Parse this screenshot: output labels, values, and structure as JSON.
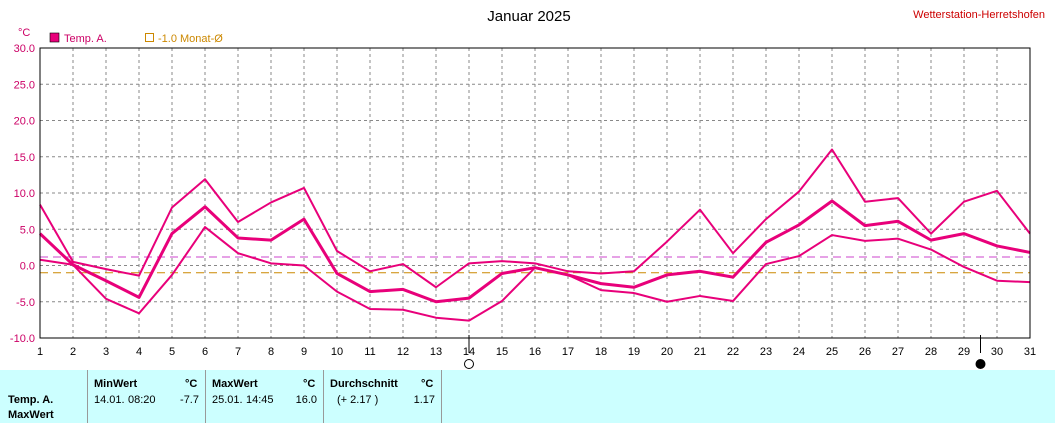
{
  "station": "Wetterstation-Herretshofen",
  "chart_data": {
    "type": "line",
    "title": "Januar 2025",
    "ylabel": "°C",
    "ylim": [
      -10,
      30
    ],
    "yticks": [
      "30.0",
      "25.0",
      "20.0",
      "15.0",
      "10.0",
      "5.0",
      "0.0",
      "-5.0",
      "-10.0"
    ],
    "x": [
      1,
      2,
      3,
      4,
      5,
      6,
      7,
      8,
      9,
      10,
      11,
      12,
      13,
      14,
      15,
      16,
      17,
      18,
      19,
      20,
      21,
      22,
      23,
      24,
      25,
      26,
      27,
      28,
      29,
      30,
      31
    ],
    "xlim": [
      1,
      31
    ],
    "grid": true,
    "legend": [
      {
        "label": "Temp. A.",
        "color": "#e8007a",
        "style": "filled-square"
      },
      {
        "label": "-1.0 Monat-Ø",
        "color": "#cc8800",
        "style": "hollow-square"
      }
    ],
    "series": [
      {
        "role": "max",
        "color": "#e8007a",
        "values": [
          8.4,
          0.5,
          -0.5,
          -1.4,
          8.0,
          11.9,
          6.0,
          8.7,
          10.7,
          2.0,
          -0.8,
          0.2,
          -3.0,
          0.3,
          0.6,
          0.3,
          -0.8,
          -1.1,
          -0.8,
          3.3,
          7.7,
          1.7,
          6.4,
          10.2,
          16.0,
          8.8,
          9.3,
          4.4,
          8.8,
          10.3,
          4.4
        ]
      },
      {
        "role": "avg",
        "color": "#e8007a",
        "values": [
          4.4,
          0.1,
          -2.1,
          -4.4,
          4.4,
          8.1,
          3.8,
          3.5,
          6.4,
          -1.1,
          -3.6,
          -3.3,
          -5.0,
          -4.5,
          -1.1,
          -0.3,
          -1.3,
          -2.5,
          -3.0,
          -1.3,
          -0.8,
          -1.6,
          3.2,
          5.6,
          8.9,
          5.5,
          6.1,
          3.5,
          4.4,
          2.7,
          1.8
        ]
      },
      {
        "role": "min",
        "color": "#e8007a",
        "values": [
          0.8,
          0.1,
          -4.6,
          -6.6,
          -1.3,
          5.3,
          1.7,
          0.3,
          0.0,
          -3.6,
          -6.0,
          -6.1,
          -7.2,
          -7.6,
          -4.9,
          -0.3,
          -1.3,
          -3.4,
          -3.8,
          -5.0,
          -4.2,
          -4.9,
          0.2,
          1.3,
          4.2,
          3.4,
          3.7,
          2.2,
          -0.2,
          -2.1,
          -2.3
        ]
      }
    ],
    "reference_lines": [
      {
        "value": 1.17,
        "color": "#cc44cc"
      },
      {
        "value": -1.0,
        "color": "#cc8800"
      }
    ],
    "moon_phases": [
      {
        "day": 14,
        "phase": "full-moon"
      },
      {
        "day": 29.5,
        "phase": "new-moon"
      }
    ],
    "colors": {
      "series": "#e8007a",
      "axis": "#000000",
      "grid": "#888888",
      "tick_label": "#000000",
      "ytick_label": "#cc0066",
      "station": "#cc0000"
    }
  },
  "stats": {
    "row1_label": "Temp. A.",
    "row2_label": "MaxWert",
    "min_header": "MinWert",
    "max_header": "MaxWert",
    "avg_header": "Durchschnitt",
    "unit": "°C",
    "min_date": "14.01.",
    "min_time": "08:20",
    "min_value": "-7.7",
    "max_date": "25.01.",
    "max_time": "14:45",
    "max_value": "16.0",
    "avg_delta": "(+ 2.17 )",
    "avg_value": "1.17"
  }
}
